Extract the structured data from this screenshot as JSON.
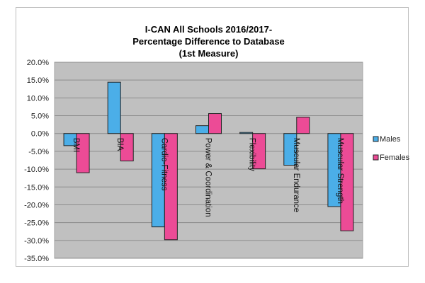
{
  "chart_data": {
    "type": "bar",
    "title": [
      "I-CAN All Schools 2016/2017-",
      "Percentage Difference to Database",
      "(1st Measure)"
    ],
    "categories": [
      "BMI",
      "BIA",
      "Cardio-Fitness",
      "Power & Coordination",
      "Flexibility",
      "Muscular Endurance",
      "Muscular Strength"
    ],
    "series": [
      {
        "name": "Males",
        "color": "#4baee8",
        "values": [
          -3.4,
          14.4,
          -26.2,
          2.2,
          0.3,
          -8.9,
          -20.5
        ]
      },
      {
        "name": "Females",
        "color": "#ec4b96",
        "values": [
          -11.0,
          -7.7,
          -29.8,
          5.6,
          -9.9,
          4.6,
          -27.3
        ]
      }
    ],
    "ylim": [
      -35,
      20
    ],
    "yticks": [
      "20.0%",
      "15.0%",
      "10.0%",
      "5.0%",
      "0.0%",
      "-5.0%",
      "-10.0%",
      "-15.0%",
      "-20.0%",
      "-25.0%",
      "-30.0%",
      "-35.0%"
    ],
    "legend_position": "right",
    "grid": true
  }
}
